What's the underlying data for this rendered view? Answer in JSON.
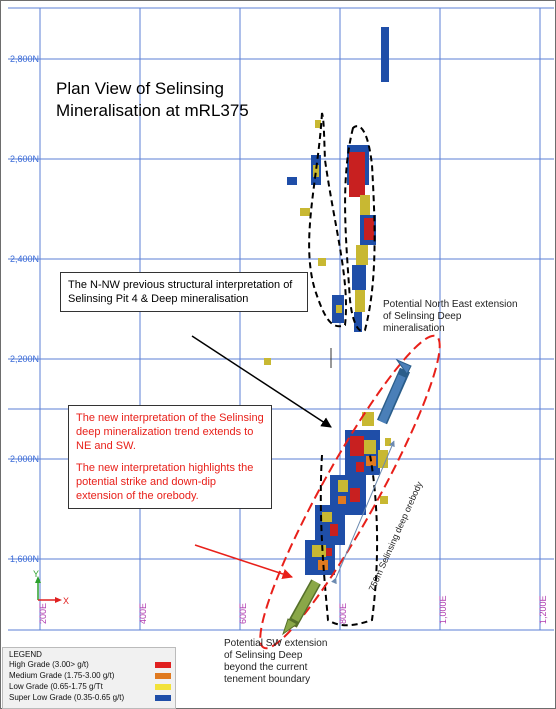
{
  "map": {
    "title": "Plan View of Selinsing Mineralisation at mRL375",
    "northing_labels": [
      "2,800N",
      "2,600N",
      "2,400N",
      "2,200N",
      "2,000N",
      "1,600N"
    ],
    "easting_labels": [
      "200E",
      "400E",
      "600E",
      "800E",
      "1,000E",
      "1,200E"
    ],
    "axis_x_label": "X",
    "axis_y_label": "Y",
    "strike_label": "750m Selinsing deep orebody"
  },
  "callouts": {
    "previous": "The N-NW previous structural interpretation of Selinsing Pit 4 & Deep mineralisation",
    "new_1": "The new interpretation of the Selinsing deep mineralization trend extends to NE and SW.",
    "new_2": "The new interpretation highlights the potential strike and down-dip extension of the orebody."
  },
  "notes": {
    "ne": "Potential North East extension of Selinsing Deep mineralisation",
    "sw": "Potential SW extension of Selinsing Deep beyond the current tenement boundary"
  },
  "legend": {
    "title": "LEGEND",
    "items": [
      {
        "label": "High Grade (3.00> g/t)",
        "color": "#e02020"
      },
      {
        "label": "Medium Grade (1.75-3.00 g/t)",
        "color": "#e07a20"
      },
      {
        "label": "Low Grade (0.65-1.75 g/Tt",
        "color": "#f2e23a"
      },
      {
        "label": "Super Low Grade (0.35-0.65 g/t)",
        "color": "#1f4ea8"
      }
    ]
  },
  "colors": {
    "grid": "#5b7fd6",
    "easting_label": "#b03cb0",
    "northing_label": "#3a6bd8",
    "red_interpretation": "#e8201a",
    "extension_arrow": "#4a7fb8",
    "sw_arrow": "#8aa848"
  }
}
